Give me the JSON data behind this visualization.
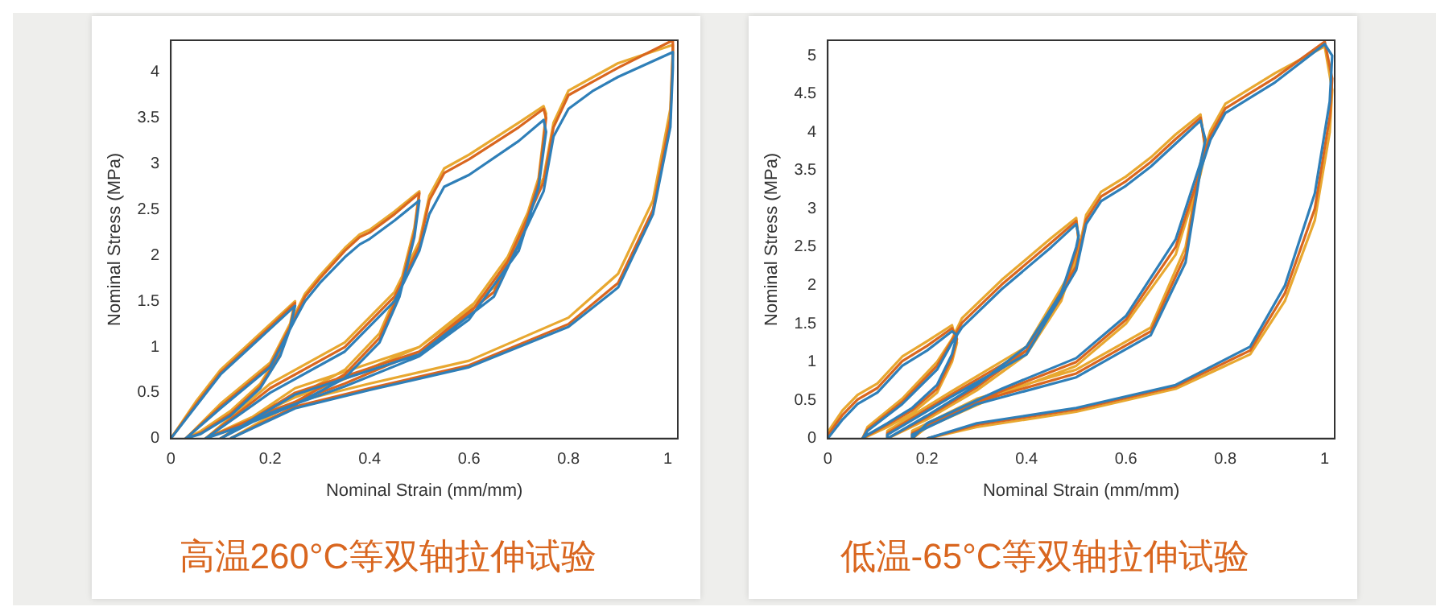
{
  "chart_data": [
    {
      "type": "line",
      "title": "高温260°C等双轴拉伸试验",
      "xlabel": "Nominal Strain (mm/mm)",
      "ylabel": "Nominal Stress (MPa)",
      "xlim": [
        0,
        1.02
      ],
      "ylim": [
        0,
        4.35
      ],
      "xticks": [
        0,
        0.2,
        0.4,
        0.6,
        0.8,
        1
      ],
      "yticks": [
        0,
        0.5,
        1,
        1.5,
        2,
        2.5,
        3,
        3.5,
        4
      ],
      "grid": false,
      "series": [
        {
          "color": "#2f7fb8",
          "x": [
            0,
            0.05,
            0.1,
            0.15,
            0.2,
            0.25,
            0.24,
            0.22,
            0.18,
            0.12,
            0.06,
            0.03,
            0.1,
            0.2,
            0.25,
            0.27,
            0.3,
            0.35,
            0.38,
            0.4,
            0.45,
            0.5,
            0.49,
            0.46,
            0.42,
            0.35,
            0.25,
            0.15,
            0.07,
            0.2,
            0.35,
            0.45,
            0.5,
            0.52,
            0.55,
            0.6,
            0.7,
            0.75,
            0.755,
            0.74,
            0.7,
            0.6,
            0.5,
            0.35,
            0.2,
            0.1,
            0.25,
            0.5,
            0.65,
            0.75,
            0.77,
            0.8,
            0.85,
            0.9,
            1.01,
            1.01,
            1.005,
            0.97,
            0.9,
            0.8,
            0.6,
            0.4,
            0.25,
            0.12
          ],
          "values": [
            0,
            0.35,
            0.7,
            0.95,
            1.2,
            1.45,
            1.2,
            0.9,
            0.55,
            0.25,
            0.05,
            0,
            0.33,
            0.78,
            1.3,
            1.5,
            1.7,
            1.98,
            2.12,
            2.18,
            2.38,
            2.6,
            2.2,
            1.55,
            1.05,
            0.66,
            0.37,
            0.15,
            0,
            0.5,
            0.95,
            1.5,
            2.05,
            2.45,
            2.75,
            2.88,
            3.25,
            3.48,
            3.35,
            2.75,
            2.05,
            1.3,
            0.9,
            0.57,
            0.28,
            0,
            0.48,
            0.92,
            1.55,
            2.7,
            3.3,
            3.6,
            3.8,
            3.95,
            4.22,
            4.05,
            3.4,
            2.45,
            1.65,
            1.22,
            0.78,
            0.53,
            0.33,
            0
          ]
        },
        {
          "color": "#d9661f",
          "x": [
            0,
            0.05,
            0.1,
            0.15,
            0.2,
            0.25,
            0.24,
            0.22,
            0.18,
            0.12,
            0.06,
            0.03,
            0.1,
            0.2,
            0.25,
            0.27,
            0.3,
            0.35,
            0.38,
            0.4,
            0.45,
            0.5,
            0.49,
            0.46,
            0.42,
            0.35,
            0.25,
            0.15,
            0.07,
            0.2,
            0.35,
            0.45,
            0.5,
            0.52,
            0.55,
            0.6,
            0.7,
            0.75,
            0.755,
            0.74,
            0.7,
            0.6,
            0.5,
            0.35,
            0.2,
            0.1,
            0.25,
            0.5,
            0.65,
            0.75,
            0.77,
            0.8,
            0.85,
            0.9,
            1.01,
            1.01,
            1.005,
            0.97,
            0.9,
            0.8,
            0.6,
            0.4,
            0.25,
            0.12
          ],
          "values": [
            0,
            0.37,
            0.72,
            0.97,
            1.22,
            1.48,
            1.22,
            0.92,
            0.57,
            0.27,
            0.06,
            0,
            0.35,
            0.8,
            1.33,
            1.55,
            1.75,
            2.05,
            2.2,
            2.25,
            2.45,
            2.68,
            2.25,
            1.6,
            1.1,
            0.7,
            0.4,
            0.18,
            0,
            0.55,
            1,
            1.55,
            2.1,
            2.6,
            2.9,
            3.05,
            3.4,
            3.6,
            3.5,
            2.8,
            2.1,
            1.35,
            0.95,
            0.6,
            0.3,
            0,
            0.5,
            0.95,
            1.6,
            2.8,
            3.4,
            3.75,
            3.9,
            4.05,
            4.35,
            4.2,
            3.5,
            2.5,
            1.7,
            1.25,
            0.8,
            0.55,
            0.35,
            0
          ]
        },
        {
          "color": "#e8a830",
          "x": [
            0,
            0.05,
            0.1,
            0.15,
            0.2,
            0.25,
            0.24,
            0.22,
            0.18,
            0.12,
            0.06,
            0.03,
            0.1,
            0.2,
            0.25,
            0.27,
            0.3,
            0.35,
            0.38,
            0.4,
            0.45,
            0.5,
            0.49,
            0.46,
            0.42,
            0.35,
            0.25,
            0.15,
            0.07,
            0.2,
            0.35,
            0.45,
            0.5,
            0.52,
            0.55,
            0.6,
            0.7,
            0.75,
            0.755,
            0.74,
            0.7,
            0.6,
            0.5,
            0.35,
            0.2,
            0.1,
            0.25,
            0.5,
            0.65,
            0.75,
            0.77,
            0.8,
            0.85,
            0.9,
            1.01,
            1.01,
            1.005,
            0.97,
            0.9,
            0.8,
            0.6,
            0.4,
            0.25,
            0.12
          ],
          "values": [
            0,
            0.4,
            0.75,
            1,
            1.25,
            1.5,
            1.25,
            0.95,
            0.6,
            0.3,
            0.08,
            0,
            0.38,
            0.83,
            1.36,
            1.58,
            1.78,
            2.08,
            2.23,
            2.28,
            2.48,
            2.7,
            2.3,
            1.65,
            1.15,
            0.75,
            0.45,
            0.2,
            0,
            0.6,
            1.05,
            1.6,
            2.15,
            2.65,
            2.95,
            3.1,
            3.45,
            3.63,
            3.55,
            2.85,
            2.15,
            1.4,
            1,
            0.65,
            0.35,
            0,
            0.55,
            1,
            1.65,
            2.85,
            3.45,
            3.8,
            3.95,
            4.1,
            4.3,
            4.25,
            3.6,
            2.6,
            1.8,
            1.32,
            0.85,
            0.6,
            0.4,
            0
          ]
        }
      ]
    },
    {
      "type": "line",
      "title": "低温-65°C等双轴拉伸试验",
      "xlabel": "Nominal Strain (mm/mm)",
      "ylabel": "Nominal Stress (MPa)",
      "xlim": [
        0,
        1.02
      ],
      "ylim": [
        0,
        5.2
      ],
      "xticks": [
        0,
        0.2,
        0.4,
        0.6,
        0.8,
        1
      ],
      "yticks": [
        0,
        0.5,
        1,
        1.5,
        2,
        2.5,
        3,
        3.5,
        4,
        4.5,
        5
      ],
      "grid": false,
      "series": [
        {
          "color": "#2f7fb8",
          "x": [
            0,
            0.03,
            0.06,
            0.1,
            0.15,
            0.2,
            0.25,
            0.26,
            0.25,
            0.22,
            0.17,
            0.12,
            0.08,
            0.07,
            0.08,
            0.15,
            0.22,
            0.25,
            0.27,
            0.35,
            0.45,
            0.5,
            0.505,
            0.5,
            0.47,
            0.4,
            0.3,
            0.2,
            0.12,
            0.12,
            0.25,
            0.4,
            0.5,
            0.52,
            0.55,
            0.6,
            0.65,
            0.7,
            0.75,
            0.76,
            0.75,
            0.7,
            0.6,
            0.5,
            0.35,
            0.2,
            0.17,
            0.17,
            0.3,
            0.5,
            0.65,
            0.72,
            0.75,
            0.77,
            0.8,
            0.85,
            0.9,
            1,
            1.015,
            1.01,
            0.98,
            0.92,
            0.85,
            0.7,
            0.5,
            0.3,
            0.2
          ],
          "values": [
            0,
            0.25,
            0.45,
            0.6,
            0.95,
            1.15,
            1.4,
            1.35,
            1.1,
            0.7,
            0.4,
            0.2,
            0.05,
            0,
            0.1,
            0.45,
            0.9,
            1.25,
            1.45,
            1.95,
            2.5,
            2.8,
            2.65,
            2.5,
            1.9,
            1.2,
            0.7,
            0.3,
            0,
            0.05,
            0.55,
            1.1,
            2.2,
            2.8,
            3.1,
            3.3,
            3.55,
            3.85,
            4.15,
            3.9,
            3.6,
            2.6,
            1.6,
            1.05,
            0.65,
            0.2,
            0,
            0.05,
            0.45,
            0.8,
            1.35,
            2.3,
            3.5,
            3.9,
            4.25,
            4.45,
            4.65,
            5.15,
            5,
            4.4,
            3.2,
            2,
            1.2,
            0.7,
            0.4,
            0.2,
            0
          ]
        },
        {
          "color": "#d9661f",
          "x": [
            0,
            0.03,
            0.06,
            0.1,
            0.15,
            0.2,
            0.25,
            0.26,
            0.25,
            0.22,
            0.17,
            0.12,
            0.08,
            0.07,
            0.08,
            0.15,
            0.22,
            0.25,
            0.27,
            0.35,
            0.45,
            0.5,
            0.505,
            0.5,
            0.47,
            0.4,
            0.3,
            0.2,
            0.12,
            0.12,
            0.25,
            0.4,
            0.5,
            0.52,
            0.55,
            0.6,
            0.65,
            0.7,
            0.75,
            0.76,
            0.75,
            0.7,
            0.6,
            0.5,
            0.35,
            0.2,
            0.17,
            0.17,
            0.3,
            0.5,
            0.65,
            0.72,
            0.75,
            0.77,
            0.8,
            0.85,
            0.9,
            1,
            1.015,
            1.01,
            0.98,
            0.92,
            0.85,
            0.7,
            0.5,
            0.3,
            0.2
          ],
          "values": [
            0.04,
            0.31,
            0.51,
            0.66,
            1.01,
            1.21,
            1.44,
            1.3,
            1.05,
            0.65,
            0.37,
            0.18,
            0.04,
            0,
            0.12,
            0.48,
            0.95,
            1.28,
            1.51,
            2.01,
            2.56,
            2.84,
            2.6,
            2.45,
            1.85,
            1.15,
            0.67,
            0.28,
            0,
            0.07,
            0.58,
            1.15,
            2.25,
            2.86,
            3.16,
            3.36,
            3.61,
            3.91,
            4.19,
            3.8,
            3.5,
            2.5,
            1.55,
            1,
            0.62,
            0.18,
            0,
            0.07,
            0.48,
            0.85,
            1.4,
            2.4,
            3.55,
            3.96,
            4.31,
            4.51,
            4.71,
            5.18,
            4.7,
            4.2,
            3,
            1.9,
            1.15,
            0.68,
            0.38,
            0.18,
            0
          ]
        },
        {
          "color": "#e8a830",
          "x": [
            0,
            0.03,
            0.06,
            0.1,
            0.15,
            0.2,
            0.25,
            0.26,
            0.25,
            0.22,
            0.17,
            0.12,
            0.08,
            0.07,
            0.08,
            0.15,
            0.22,
            0.25,
            0.27,
            0.35,
            0.45,
            0.5,
            0.505,
            0.5,
            0.47,
            0.4,
            0.3,
            0.2,
            0.12,
            0.12,
            0.25,
            0.4,
            0.5,
            0.52,
            0.55,
            0.6,
            0.65,
            0.7,
            0.75,
            0.76,
            0.75,
            0.7,
            0.6,
            0.5,
            0.35,
            0.2,
            0.17,
            0.17,
            0.3,
            0.5,
            0.65,
            0.72,
            0.75,
            0.77,
            0.8,
            0.85,
            0.9,
            1,
            1.015,
            1.01,
            0.98,
            0.92,
            0.85,
            0.7,
            0.5,
            0.3,
            0.2
          ],
          "values": [
            0.08,
            0.37,
            0.57,
            0.72,
            1.07,
            1.27,
            1.48,
            1.25,
            1,
            0.6,
            0.33,
            0.15,
            0.03,
            0,
            0.15,
            0.52,
            1,
            1.3,
            1.57,
            2.07,
            2.62,
            2.88,
            2.55,
            2.4,
            1.8,
            1.1,
            0.63,
            0.25,
            0,
            0.1,
            0.62,
            1.2,
            2.3,
            2.92,
            3.22,
            3.42,
            3.67,
            3.97,
            4.23,
            3.75,
            3.45,
            2.4,
            1.5,
            0.95,
            0.58,
            0.15,
            0,
            0.1,
            0.52,
            0.9,
            1.45,
            2.5,
            3.6,
            4.02,
            4.37,
            4.57,
            4.77,
            5.12,
            4.55,
            4,
            2.85,
            1.8,
            1.1,
            0.65,
            0.35,
            0.15,
            0
          ]
        }
      ]
    }
  ]
}
